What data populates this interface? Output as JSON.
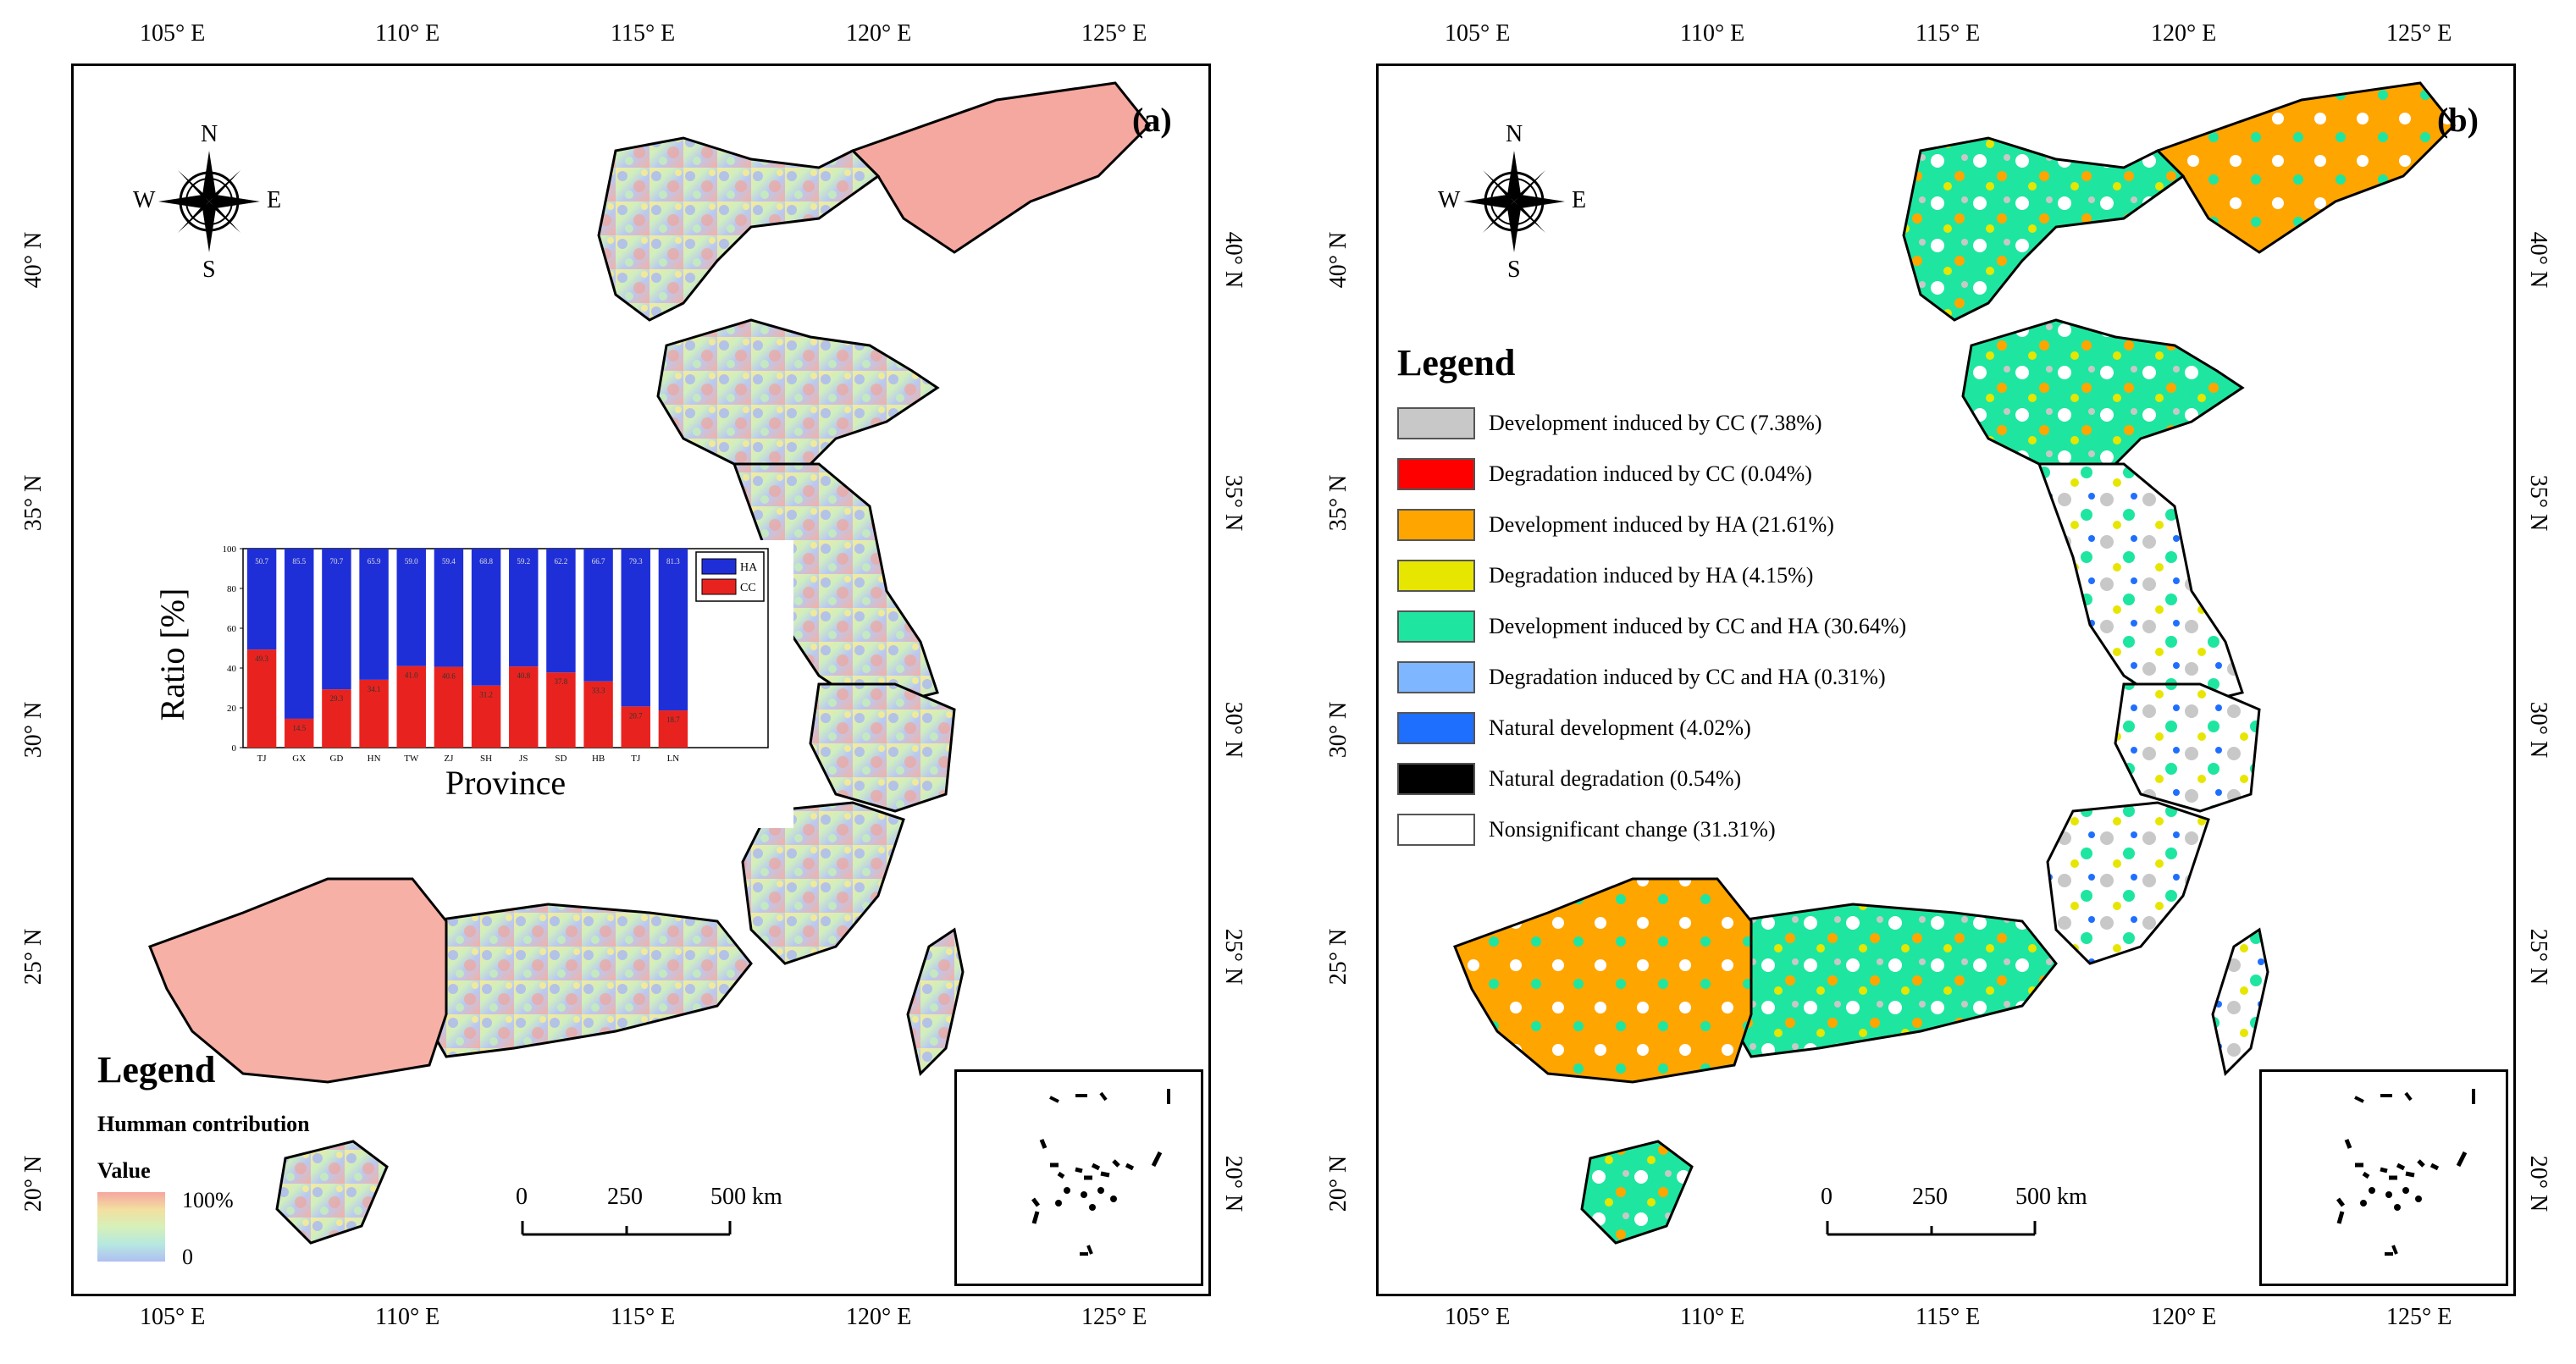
{
  "axes": {
    "longitude_labels": [
      "105° E",
      "110° E",
      "115° E",
      "120° E",
      "125° E"
    ],
    "latitude_labels": [
      "40° N",
      "35° N",
      "30° N",
      "25° N",
      "20° N"
    ]
  },
  "panel_a": {
    "letter": "(a)",
    "compass": {
      "n": "N",
      "s": "S",
      "e": "E",
      "w": "W"
    },
    "legend": {
      "title": "Legend",
      "subtitle": "Humman contribution",
      "value_label": "Value",
      "max_label": "100%",
      "min_label": "0"
    },
    "scalebar": {
      "labels": [
        "0",
        "250",
        "500 km"
      ]
    },
    "chart_data": {
      "type": "bar",
      "stacked": true,
      "xlabel": "Province",
      "ylabel": "Ratio [%]",
      "ylim": [
        0,
        100
      ],
      "yticks": [
        "0",
        "20",
        "40",
        "60",
        "80",
        "100"
      ],
      "categories": [
        "TJ",
        "GX",
        "GD",
        "HN",
        "TW",
        "ZJ",
        "SH",
        "JS",
        "SD",
        "HB",
        "TJ",
        "LN"
      ],
      "legend": [
        "HA",
        "CC"
      ],
      "series": [
        {
          "name": "CC",
          "color": "#e8231f",
          "values": [
            49.3,
            14.5,
            29.3,
            34.1,
            41.0,
            40.6,
            31.2,
            40.8,
            37.8,
            33.3,
            20.7,
            18.7
          ]
        },
        {
          "name": "HA",
          "color": "#1f2fd8",
          "values": [
            50.7,
            85.5,
            70.7,
            65.9,
            59.0,
            59.4,
            68.8,
            59.2,
            62.2,
            66.7,
            79.3,
            81.3
          ]
        }
      ],
      "value_labels_cc": [
        "49.3",
        "14.5",
        "29.3",
        "34.1",
        "41.0",
        "40.6",
        "31.2",
        "40.8",
        "37.8",
        "33.3",
        "20.7",
        "18.7"
      ],
      "value_labels_ha": [
        "50.7",
        "85.5",
        "70.7",
        "65.9",
        "59.0",
        "59.4",
        "68.8",
        "59.2",
        "62.2",
        "66.7",
        "79.3",
        "81.3"
      ]
    }
  },
  "panel_b": {
    "letter": "(b)",
    "compass": {
      "n": "N",
      "s": "S",
      "e": "E",
      "w": "W"
    },
    "legend_title": "Legend",
    "legend_items": [
      {
        "label": "Development induced by CC (7.38%)",
        "color": "#c8c8c8"
      },
      {
        "label": "Degradation induced by CC (0.04%)",
        "color": "#ff0000"
      },
      {
        "label": "Development induced by HA (21.61%)",
        "color": "#ffa500"
      },
      {
        "label": "Degradation induced by HA (4.15%)",
        "color": "#e6e600"
      },
      {
        "label": "Development induced by CC and HA (30.64%)",
        "color": "#1ee6a0"
      },
      {
        "label": "Degradation induced by CC and HA (0.31%)",
        "color": "#7eb6ff"
      },
      {
        "label": "Natural development (4.02%)",
        "color": "#1f6fff"
      },
      {
        "label": "Natural degradation (0.54%)",
        "color": "#000000"
      },
      {
        "label": "Nonsignificant change (31.31%)",
        "color": "#ffffff"
      }
    ],
    "scalebar": {
      "labels": [
        "0",
        "250",
        "500 km"
      ]
    }
  }
}
